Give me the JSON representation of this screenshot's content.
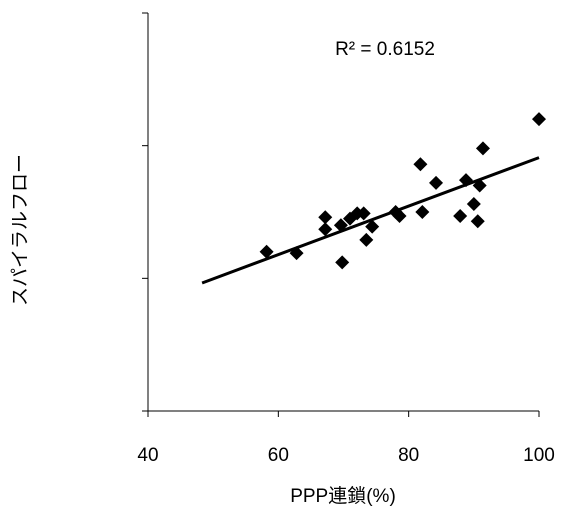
{
  "chart_data": {
    "type": "scatter",
    "annotation": "R² = 0.6152",
    "xlabel": "PPP連鎖(%)",
    "ylabel": "スパイラルフロー",
    "x": [
      100,
      58.2,
      62.8,
      67.2,
      67.2,
      69.6,
      69.8,
      71.0,
      72.1,
      73.1,
      73.5,
      74.4,
      78.0,
      78.6,
      81.8,
      82.1,
      84.2,
      87.9,
      88.8,
      90.0,
      90.6,
      90.9,
      91.4
    ],
    "values": [
      2.2,
      1.2,
      1.19,
      1.46,
      1.37,
      1.4,
      1.12,
      1.45,
      1.49,
      1.49,
      1.29,
      1.39,
      1.5,
      1.47,
      1.86,
      1.5,
      1.72,
      1.47,
      1.74,
      1.56,
      1.43,
      1.7,
      1.98
    ],
    "color": "#000000",
    "trendline": {
      "x": [
        48.3,
        100
      ],
      "y": [
        0.965,
        1.91
      ]
    },
    "xlim": [
      40,
      100
    ],
    "xticks": [
      40,
      60,
      80,
      100
    ],
    "ylim": [
      0,
      3
    ],
    "yticks": [
      0,
      1,
      2,
      3
    ],
    "ytick_labels": false
  }
}
